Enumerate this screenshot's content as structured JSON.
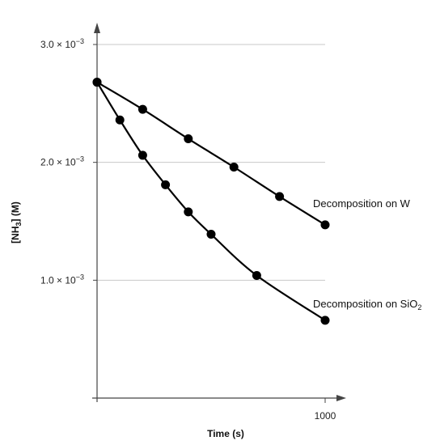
{
  "chart_data": {
    "type": "line",
    "title": "",
    "xlabel": "Time (s)",
    "ylabel_prefix": "[NH",
    "ylabel_sub": "3",
    "ylabel_suffix": "] (M)",
    "xlim": [
      0,
      1000
    ],
    "ylim": [
      0,
      0.003
    ],
    "grid": true,
    "x_ticks": [
      {
        "value": 1000,
        "label": "1000"
      }
    ],
    "y_ticks": [
      {
        "value": 0.003,
        "mantissa": "3.0 × 10",
        "exponent": "−3"
      },
      {
        "value": 0.002,
        "mantissa": "2.0 × 10",
        "exponent": "−3"
      },
      {
        "value": 0.001,
        "mantissa": "1.0 × 10",
        "exponent": "−3"
      }
    ],
    "series": [
      {
        "name": "Decomposition on W",
        "name_sub": "",
        "x": [
          0,
          200,
          400,
          600,
          800,
          1000
        ],
        "y": [
          0.00268,
          0.00245,
          0.0022,
          0.00196,
          0.00171,
          0.00147
        ]
      },
      {
        "name": "Decomposition on SiO",
        "name_sub": "2",
        "x": [
          0,
          100,
          200,
          300,
          400,
          500,
          700,
          1000
        ],
        "y": [
          0.00268,
          0.00236,
          0.00206,
          0.00181,
          0.00158,
          0.00139,
          0.00104,
          0.00066
        ]
      }
    ],
    "colors": {
      "line": "#000000",
      "grid": "#c8c8c8",
      "axis": "#444444"
    }
  }
}
